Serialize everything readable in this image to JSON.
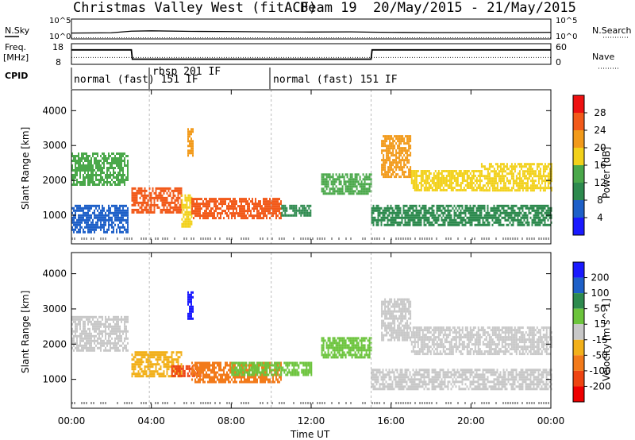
{
  "header": {
    "title": "Christmas Valley West (fitACF)",
    "beam": "Beam 19",
    "date_range": "20/May/2015 - 21/May/2015"
  },
  "status_panels": {
    "nsky_label": "N.Sky",
    "nsearch_label": "N.Search",
    "nsky_ticks": [
      "10^5",
      "10^0"
    ],
    "nsearch_ticks": [
      "10^5",
      "10^0"
    ],
    "freq_label_line1": "Freq.",
    "freq_label_line2": "[MHz]",
    "freq_ticks": [
      "18",
      "8"
    ],
    "nave_label": "Nave",
    "nave_ticks": [
      "60",
      "0"
    ],
    "cpid_label": "CPID",
    "cpid_segments": [
      {
        "label": "normal (fast) 151 IF",
        "start_hour": 0
      },
      {
        "label": "rbsp 201 IF",
        "start_hour": 3.9
      },
      {
        "label": "normal (fast) 151 IF",
        "start_hour": 10
      }
    ]
  },
  "x_axis": {
    "label": "Time UT",
    "ticks": [
      "00:00",
      "04:00",
      "08:00",
      "12:00",
      "16:00",
      "20:00",
      "00:00"
    ]
  },
  "colors": {
    "power_scale": [
      "#1a1aff",
      "#1e60c8",
      "#2d8a4e",
      "#4aa84a",
      "#f2d11a",
      "#f29a1a",
      "#f25a1a",
      "#ee1111"
    ],
    "velocity_scale": [
      "#1a1aff",
      "#1e60c8",
      "#2d8a4e",
      "#6cc43c",
      "#c8c8c8",
      "#f2b01a",
      "#f27a1a",
      "#ee4411",
      "#ee0000"
    ],
    "ground_scatter": "#9a9a9a"
  },
  "chart_data": [
    {
      "type": "line",
      "panel": "N.Sky / N.Search",
      "ylabel": "N.Sky",
      "log_scale": true,
      "ylim": [
        1,
        100000
      ],
      "x_hours": [
        0,
        2,
        3,
        4,
        6,
        8,
        10,
        12,
        14,
        15,
        16,
        18,
        20,
        22,
        24
      ],
      "series": [
        {
          "name": "N.Sky",
          "values": [
            30,
            35,
            90,
            110,
            80,
            70,
            60,
            55,
            60,
            50,
            45,
            40,
            40,
            40,
            45
          ]
        },
        {
          "name": "N.Search",
          "values": [
            2,
            2,
            2,
            2,
            2,
            2,
            2,
            2,
            2,
            2,
            2,
            2,
            2,
            2,
            2
          ]
        }
      ]
    },
    {
      "type": "line",
      "panel": "Freq. / Nave",
      "ylabel": "Freq. [MHz]",
      "ylim": [
        8,
        18
      ],
      "x_hours": [
        0,
        3,
        3.05,
        15,
        15.05,
        24
      ],
      "series": [
        {
          "name": "Freq.",
          "values": [
            15,
            15,
            10.5,
            10.5,
            15,
            15
          ]
        },
        {
          "name": "Nave",
          "values": [
            20,
            20,
            20,
            20,
            20,
            20
          ]
        }
      ]
    },
    {
      "type": "heatmap",
      "panel": "Power",
      "xlabel": "Time UT",
      "ylabel": "Slant Range [km]",
      "xlim_hours": [
        0,
        24
      ],
      "ylim": [
        180,
        4600
      ],
      "yticks": [
        1000,
        2000,
        3000,
        4000
      ],
      "colorbar_label": "Power [dB]",
      "colorbar_ticks": [
        "28",
        "24",
        "20",
        "16",
        "12",
        "8",
        "4"
      ],
      "bands": [
        {
          "t0": 0.0,
          "t1": 2.8,
          "r0": 1850,
          "r1": 2800,
          "power_db": 14
        },
        {
          "t0": 0.0,
          "t1": 2.8,
          "r0": 500,
          "r1": 1300,
          "power_db": 6
        },
        {
          "t0": 3.0,
          "t1": 5.5,
          "r0": 1100,
          "r1": 1800,
          "power_db": 26
        },
        {
          "t0": 5.5,
          "t1": 6.0,
          "r0": 700,
          "r1": 1600,
          "power_db": 18
        },
        {
          "t0": 6.0,
          "t1": 10.5,
          "r0": 900,
          "r1": 1500,
          "power_db": 27
        },
        {
          "t0": 10.5,
          "t1": 12.0,
          "r0": 1000,
          "r1": 1300,
          "power_db": 10
        },
        {
          "t0": 12.5,
          "t1": 15.0,
          "r0": 1600,
          "r1": 2200,
          "power_db": 12
        },
        {
          "t0": 15.0,
          "t1": 24.0,
          "r0": 700,
          "r1": 1300,
          "power_db": 10
        },
        {
          "t0": 15.5,
          "t1": 17.0,
          "r0": 2100,
          "r1": 3300,
          "power_db": 20
        },
        {
          "t0": 17.0,
          "t1": 20.5,
          "r0": 1700,
          "r1": 2300,
          "power_db": 18
        },
        {
          "t0": 20.5,
          "t1": 24.0,
          "r0": 1700,
          "r1": 2500,
          "power_db": 16
        },
        {
          "t0": 5.8,
          "t1": 6.1,
          "r0": 2700,
          "r1": 3500,
          "power_db": 22
        }
      ]
    },
    {
      "type": "heatmap",
      "panel": "Velocity",
      "xlabel": "Time UT",
      "ylabel": "Slant Range [km]",
      "xlim_hours": [
        0,
        24
      ],
      "ylim": [
        180,
        4600
      ],
      "yticks": [
        1000,
        2000,
        3000,
        4000
      ],
      "colorbar_label": "Velocity [m s^-1]",
      "colorbar_ticks": [
        "200",
        "100",
        "50",
        "15",
        "-15",
        "-50",
        "-100",
        "-200"
      ],
      "bands": [
        {
          "t0": 0.0,
          "t1": 2.8,
          "r0": 1850,
          "r1": 2800,
          "velocity": 0
        },
        {
          "t0": 3.0,
          "t1": 5.5,
          "r0": 1100,
          "r1": 1800,
          "velocity": -40
        },
        {
          "t0": 5.0,
          "t1": 6.5,
          "r0": 1100,
          "r1": 1400,
          "velocity": -200
        },
        {
          "t0": 6.0,
          "t1": 10.5,
          "r0": 900,
          "r1": 1500,
          "velocity": -60
        },
        {
          "t0": 8.0,
          "t1": 12.0,
          "r0": 1100,
          "r1": 1500,
          "velocity": 40
        },
        {
          "t0": 12.5,
          "t1": 15.0,
          "r0": 1600,
          "r1": 2200,
          "velocity": 30
        },
        {
          "t0": 15.0,
          "t1": 24.0,
          "r0": 700,
          "r1": 1300,
          "velocity": 0
        },
        {
          "t0": 15.5,
          "t1": 17.0,
          "r0": 2100,
          "r1": 3300,
          "velocity": 0
        },
        {
          "t0": 17.0,
          "t1": 24.0,
          "r0": 1700,
          "r1": 2500,
          "velocity": 0
        },
        {
          "t0": 5.8,
          "t1": 6.1,
          "r0": 2700,
          "r1": 3500,
          "velocity": 200
        }
      ]
    }
  ]
}
